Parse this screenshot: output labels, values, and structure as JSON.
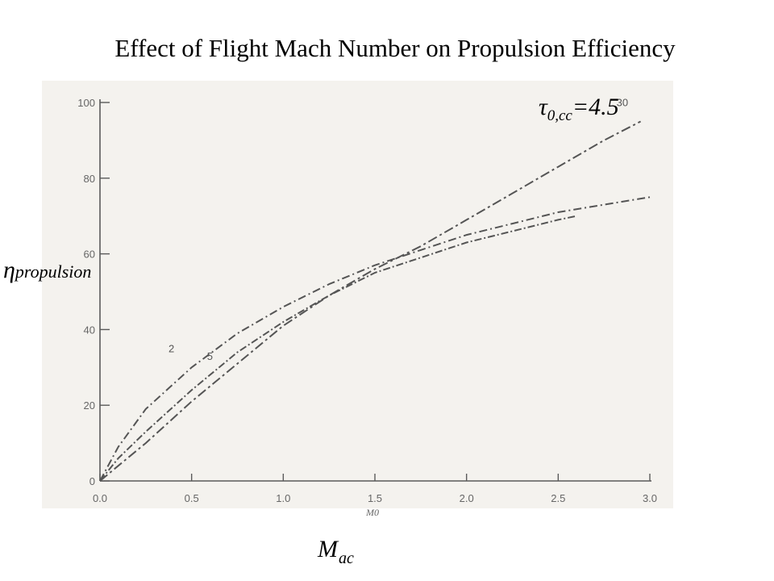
{
  "title": "Effect of Flight Mach Number on Propulsion Efficiency",
  "annotation": {
    "tau_symbol": "τ",
    "tau_subscript": "0,cc",
    "tau_value": "=4.5"
  },
  "ylabel": {
    "symbol": "η",
    "subscript": "propulsion"
  },
  "xlabel": {
    "symbol": "M",
    "subscript": "ac"
  },
  "scan_xlabel": "M0",
  "chart_data": {
    "type": "line",
    "xlim": [
      0,
      3.0
    ],
    "ylim": [
      0,
      100
    ],
    "xticks": [
      "0.0",
      "0.5",
      "1.0",
      "1.5",
      "2.0",
      "2.5",
      "3.0"
    ],
    "yticks": [
      "0",
      "20",
      "40",
      "60",
      "80",
      "100"
    ],
    "grid": false,
    "series": [
      {
        "name": "2",
        "x": [
          0,
          0.1,
          0.25,
          0.5,
          0.75,
          1.0,
          1.25,
          1.5,
          1.75,
          2.0,
          2.25,
          2.5,
          2.75,
          3.0
        ],
        "y": [
          0,
          9,
          19,
          30,
          39,
          46,
          52,
          57,
          61,
          65,
          68,
          71,
          73,
          75
        ]
      },
      {
        "name": "5",
        "x": [
          0,
          0.1,
          0.25,
          0.5,
          0.75,
          1.0,
          1.25,
          1.5,
          1.75,
          2.0,
          2.25,
          2.5,
          2.6
        ],
        "y": [
          0,
          6,
          13,
          24,
          34,
          42,
          49,
          55,
          59,
          63,
          66,
          69,
          70
        ]
      },
      {
        "name": "30",
        "x": [
          0,
          0.1,
          0.25,
          0.5,
          0.75,
          1.0,
          1.25,
          1.5,
          1.75,
          2.0,
          2.25,
          2.5,
          2.75,
          2.95
        ],
        "y": [
          0,
          4,
          10,
          21,
          31,
          41,
          49,
          56,
          62,
          69,
          76,
          83,
          90,
          95
        ]
      }
    ]
  }
}
